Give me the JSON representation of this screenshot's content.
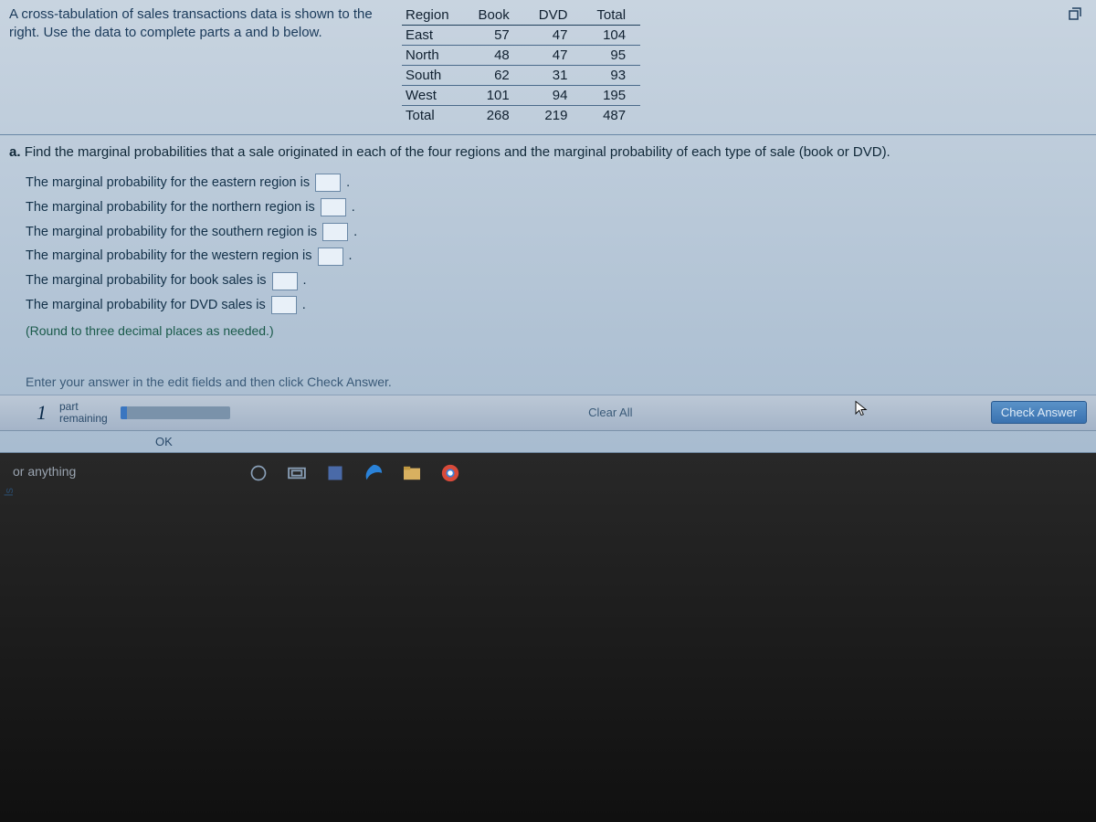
{
  "colors": {
    "window_bg_top": "#c8d4e0",
    "window_bg_bottom": "#a8bcd0",
    "text_primary": "#102838",
    "text_heading": "#1a3a5a",
    "border": "#6a88a6",
    "round_note": "#1a5a4a",
    "button_primary": "#3a72b0",
    "taskbar_bg": "#101010"
  },
  "problem": {
    "intro": "A cross-tabulation of sales transactions data is shown to the right. Use the data to complete parts a and b below."
  },
  "table": {
    "type": "table",
    "columns": [
      "Region",
      "Book",
      "DVD",
      "Total"
    ],
    "rows": [
      [
        "East",
        57,
        47,
        104
      ],
      [
        "North",
        48,
        47,
        95
      ],
      [
        "South",
        62,
        31,
        93
      ],
      [
        "West",
        101,
        94,
        195
      ],
      [
        "Total",
        268,
        219,
        487
      ]
    ],
    "header_border_color": "#20405a",
    "row_border_color": "#4a6a8a",
    "font_size": 15
  },
  "part_a": {
    "label": "a.",
    "text": "Find the marginal probabilities that a sale originated in each of the four regions and the marginal probability of each type of sale (book or DVD)."
  },
  "answers": {
    "lines": [
      "The marginal probability for the eastern region is",
      "The marginal probability for the northern region is",
      "The marginal probability for the southern region is",
      "The marginal probability for the western region is",
      "The marginal probability for book sales is",
      "The marginal probability for DVD sales is"
    ],
    "round_note": "(Round to three decimal places as needed.)"
  },
  "enter_note": "Enter your answer in the edit fields and then click Check Answer.",
  "sidebar_tab": "ls",
  "footer": {
    "parts_count": "1",
    "parts_label_top": "part",
    "parts_label_bottom": "remaining",
    "progress_pct": 6,
    "clear_all": "Clear All",
    "check_answer": "Check Answer",
    "ok": "OK"
  },
  "taskbar": {
    "search_placeholder": "or anything"
  }
}
